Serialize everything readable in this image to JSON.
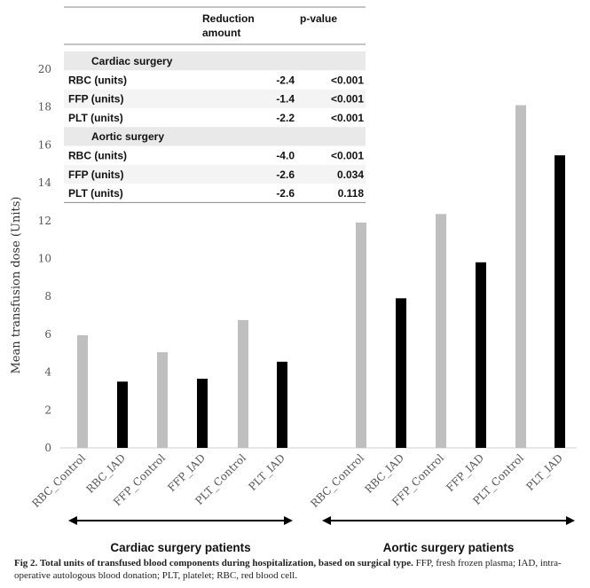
{
  "chart_data": {
    "type": "bar",
    "ylabel": "Mean transfusion dose (Units)",
    "ylim": [
      0,
      20
    ],
    "yticks": [
      0,
      2,
      4,
      6,
      8,
      10,
      12,
      14,
      16,
      18,
      20
    ],
    "grid": false,
    "colors": {
      "control": "#bfbfbf",
      "iad": "#000000"
    },
    "groups": [
      {
        "name": "Cardiac surgery patients",
        "bars": [
          {
            "category": "RBC_Control",
            "value": 5.95,
            "kind": "control"
          },
          {
            "category": "RBC_IAD",
            "value": 3.5,
            "kind": "iad"
          },
          {
            "category": "FFP_Control",
            "value": 5.05,
            "kind": "control"
          },
          {
            "category": "FFP_IAD",
            "value": 3.65,
            "kind": "iad"
          },
          {
            "category": "PLT_Control",
            "value": 6.75,
            "kind": "control"
          },
          {
            "category": "PLT_IAD",
            "value": 4.55,
            "kind": "iad"
          }
        ]
      },
      {
        "name": "Aortic surgery patients",
        "bars": [
          {
            "category": "RBC_Control",
            "value": 11.9,
            "kind": "control"
          },
          {
            "category": "RBC_IAD",
            "value": 7.9,
            "kind": "iad"
          },
          {
            "category": "FFP_Control",
            "value": 12.35,
            "kind": "control"
          },
          {
            "category": "FFP_IAD",
            "value": 9.8,
            "kind": "iad"
          },
          {
            "category": "PLT_Control",
            "value": 18.1,
            "kind": "control"
          },
          {
            "category": "PLT_IAD",
            "value": 15.45,
            "kind": "iad"
          }
        ]
      }
    ]
  },
  "table": {
    "headers": [
      "",
      "Reduction amount",
      "p-value"
    ],
    "rows": [
      {
        "label": "Cardiac surgery",
        "section": true
      },
      {
        "label": "RBC (units)",
        "reduction": "-2.4",
        "p": "<0.001"
      },
      {
        "label": "FFP (units)",
        "reduction": "-1.4",
        "p": "<0.001"
      },
      {
        "label": "PLT (units)",
        "reduction": "-2.2",
        "p": "<0.001"
      },
      {
        "label": "Aortic surgery",
        "section": true
      },
      {
        "label": "RBC (units)",
        "reduction": "-4.0",
        "p": "<0.001"
      },
      {
        "label": "FFP (units)",
        "reduction": "-2.6",
        "p": "0.034"
      },
      {
        "label": "PLT (units)",
        "reduction": "-2.6",
        "p": "0.118"
      }
    ]
  },
  "caption": {
    "title": "Fig 2.  Total units of transfused blood components during hospitalization, based on surgical type.",
    "text": " FFP, fresh frozen plasma; IAD, intra-operative autologous blood donation; PLT, platelet; RBC, red blood cell."
  }
}
